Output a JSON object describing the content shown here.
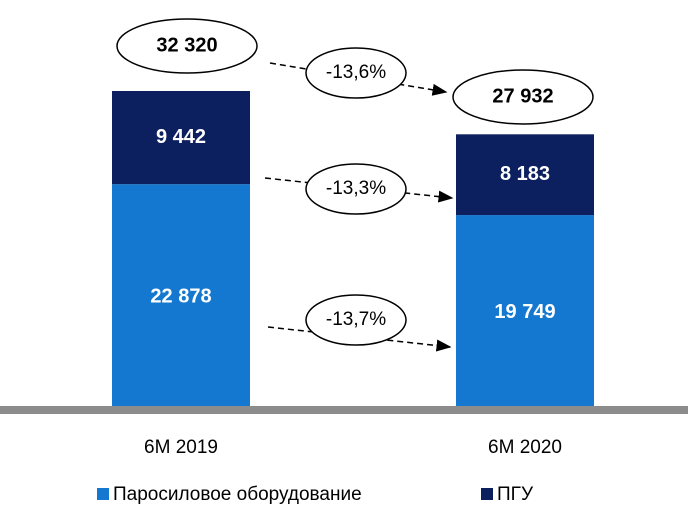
{
  "chart_data": {
    "type": "stacked-bar",
    "categories": [
      "6M 2019",
      "6M 2020"
    ],
    "series": [
      {
        "name": "Паросиловое оборудование",
        "color": "#1478d0",
        "values": [
          22878,
          19749
        ],
        "value_labels": [
          "22 878",
          "19 749"
        ]
      },
      {
        "name": "ПГУ",
        "color": "#0c1f5e",
        "values": [
          9442,
          8183
        ],
        "value_labels": [
          "9 442",
          "8 183"
        ]
      }
    ],
    "totals": [
      32320,
      27932
    ],
    "total_labels": [
      "32 320",
      "27 932"
    ],
    "annotations": [
      "-13,6%",
      "-13,3%",
      "-13,7%"
    ],
    "legend": "bottom"
  }
}
